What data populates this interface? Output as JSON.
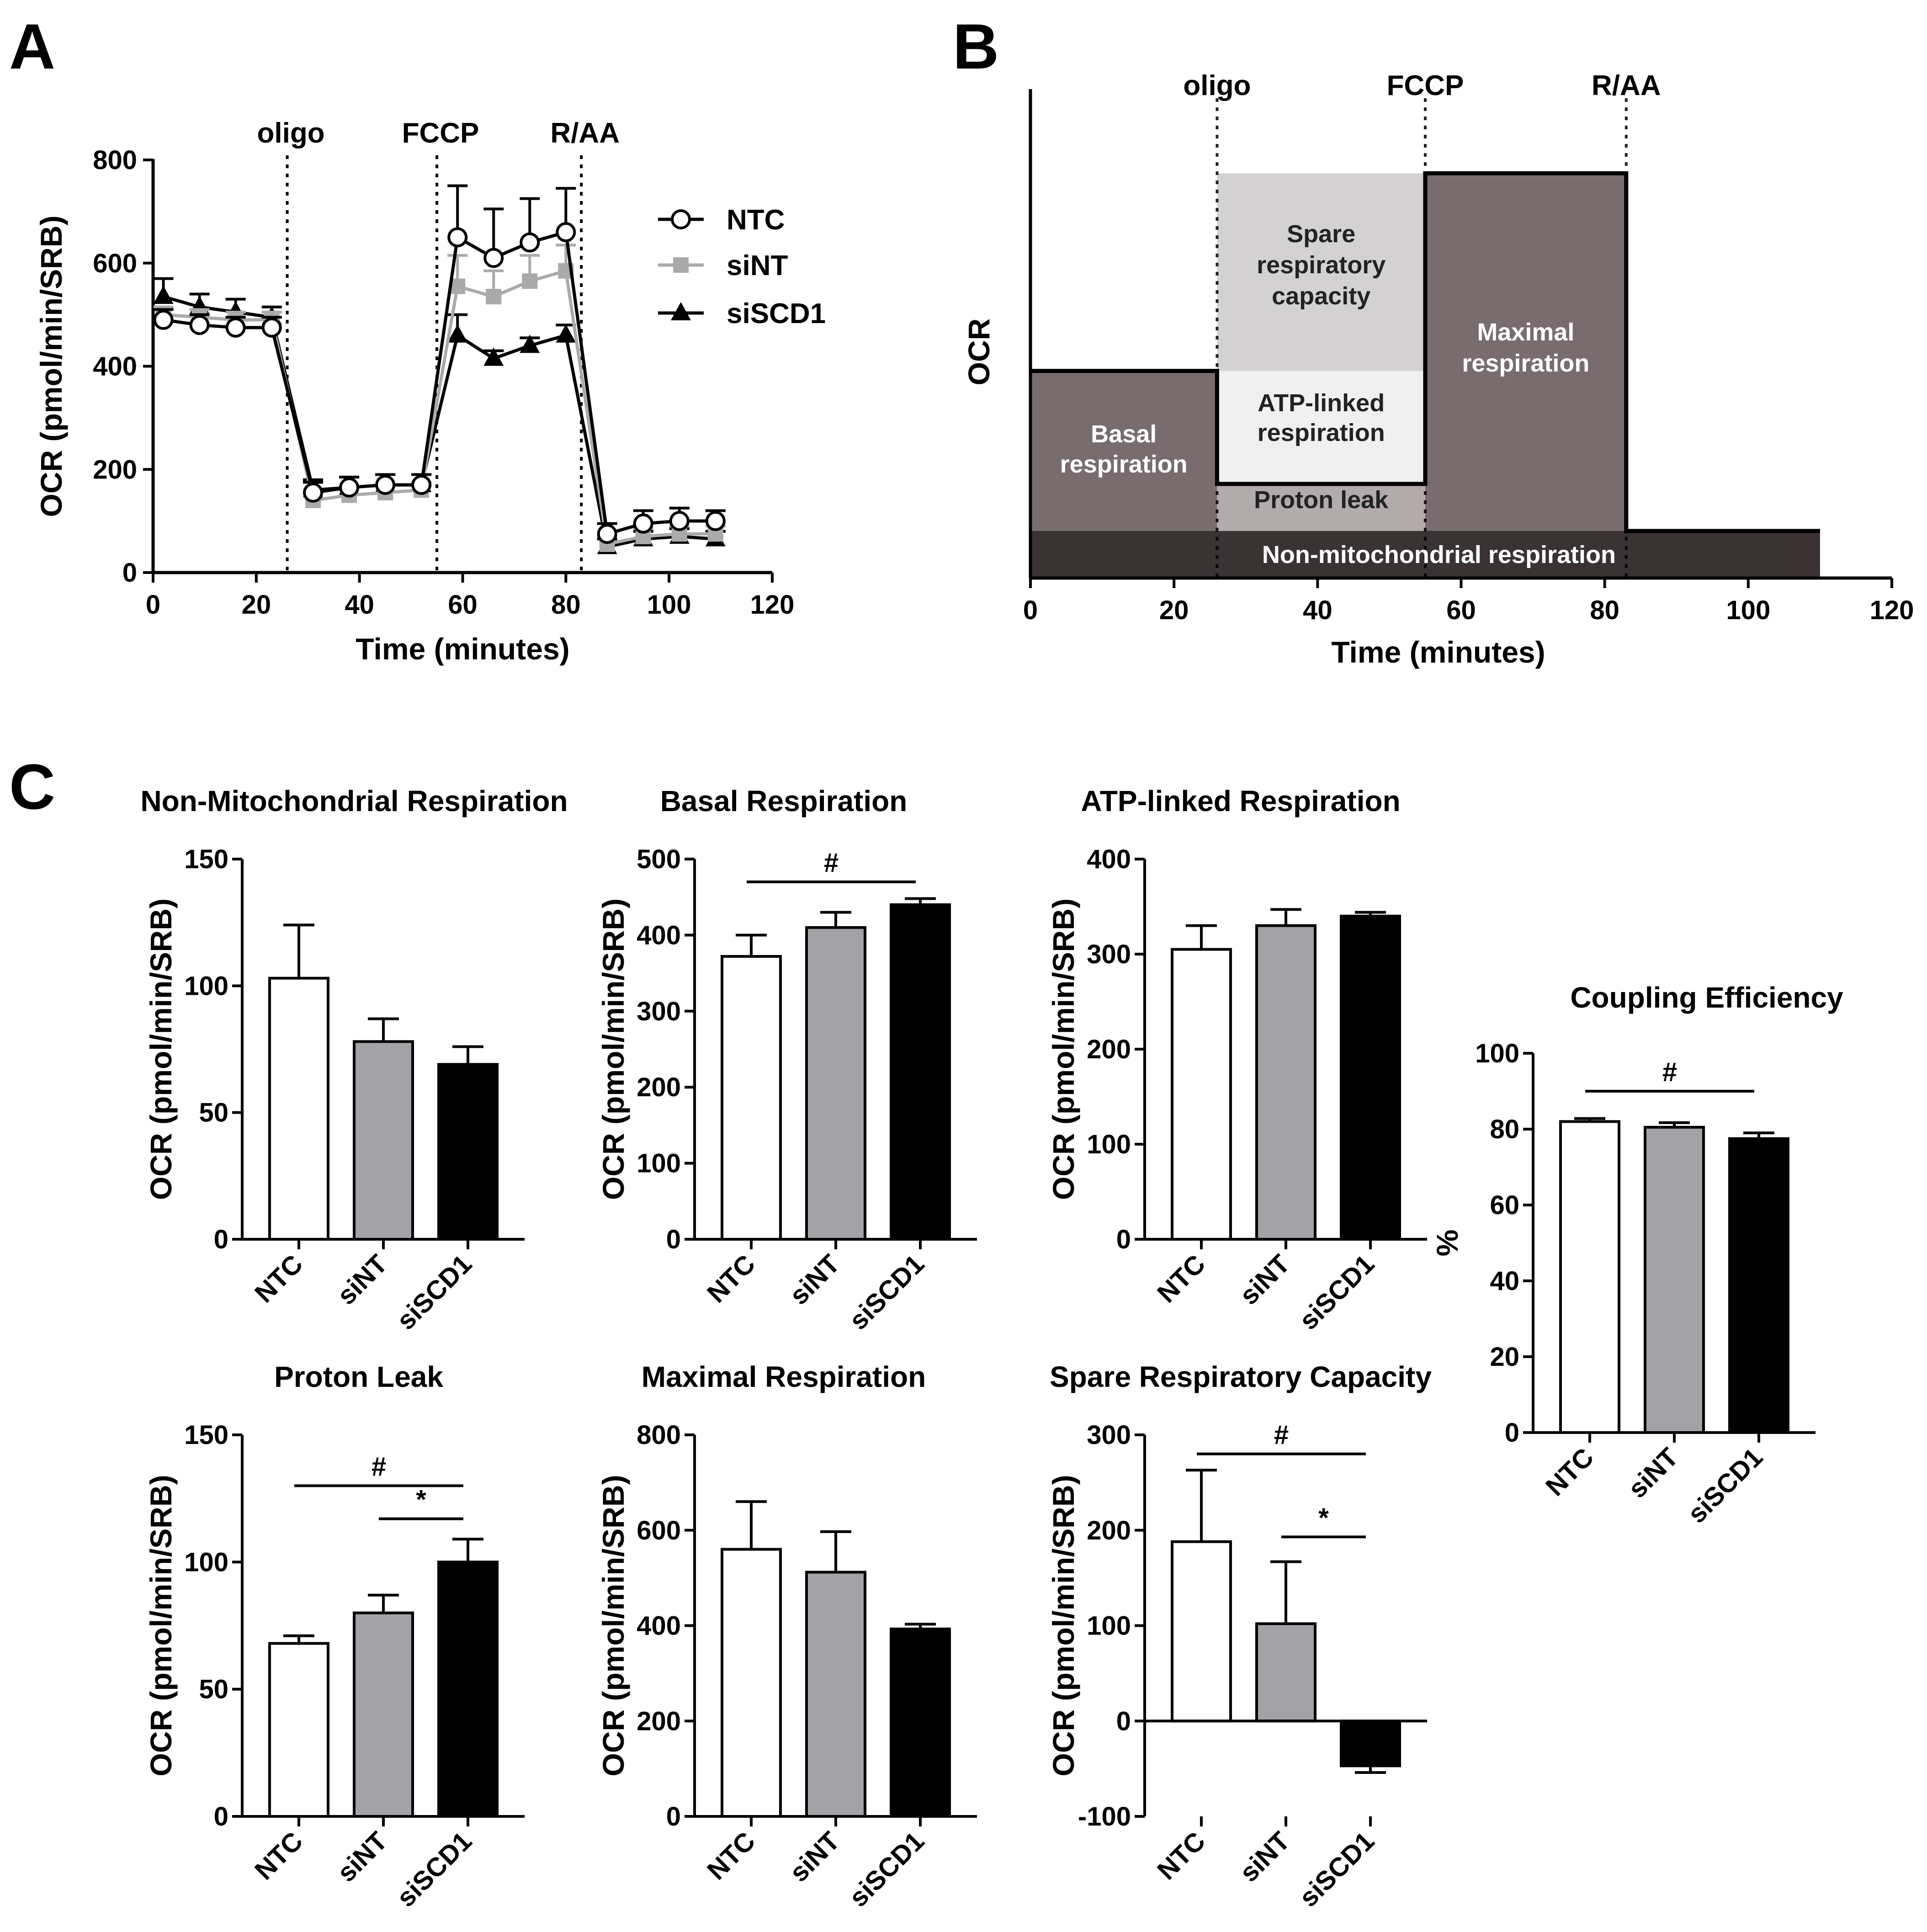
{
  "panels": {
    "a": "A",
    "b": "B",
    "c": "C"
  },
  "chart_data": [
    {
      "id": "A",
      "type": "line",
      "xlabel": "Time (minutes)",
      "ylabel": "OCR (pmol/min/SRB)",
      "xlim": [
        0,
        120
      ],
      "ylim": [
        0,
        800
      ],
      "xticks": [
        0,
        20,
        40,
        60,
        80,
        100,
        120
      ],
      "yticks": [
        0,
        200,
        400,
        600,
        800
      ],
      "injections": [
        {
          "label": "oligo",
          "x": 26
        },
        {
          "label": "FCCP",
          "x": 55
        },
        {
          "label": "R/AA",
          "x": 83
        }
      ],
      "x": [
        2,
        9,
        16,
        23,
        31,
        38,
        45,
        52,
        59,
        66,
        73,
        80,
        88,
        95,
        102,
        109
      ],
      "series": [
        {
          "name": "NTC",
          "marker": "circle-open",
          "color": "#000000",
          "values": [
            490,
            480,
            475,
            475,
            155,
            165,
            170,
            170,
            650,
            610,
            640,
            660,
            75,
            95,
            100,
            100
          ],
          "errors": [
            20,
            20,
            20,
            20,
            20,
            20,
            20,
            20,
            100,
            95,
            85,
            85,
            20,
            25,
            25,
            20
          ]
        },
        {
          "name": "siNT",
          "marker": "square",
          "color": "#aaaaaa",
          "values": [
            500,
            495,
            490,
            490,
            140,
            150,
            155,
            160,
            555,
            535,
            565,
            585,
            55,
            70,
            75,
            75
          ],
          "errors": [
            15,
            15,
            15,
            15,
            15,
            15,
            15,
            15,
            60,
            50,
            50,
            50,
            15,
            15,
            15,
            15
          ]
        },
        {
          "name": "siSCD1",
          "marker": "triangle",
          "color": "#000000",
          "values": [
            535,
            515,
            505,
            495,
            160,
            165,
            170,
            170,
            460,
            415,
            440,
            460,
            50,
            65,
            70,
            65
          ],
          "errors": [
            35,
            25,
            25,
            20,
            20,
            20,
            20,
            20,
            40,
            15,
            15,
            20,
            15,
            15,
            15,
            15
          ]
        }
      ]
    },
    {
      "id": "B",
      "type": "area",
      "xlabel": "Time (minutes)",
      "ylabel": "OCR",
      "xlim": [
        0,
        120
      ],
      "xticks": [
        0,
        20,
        40,
        60,
        80,
        100,
        120
      ],
      "injections": [
        {
          "label": "oligo",
          "x": 26
        },
        {
          "label": "FCCP",
          "x": 55
        },
        {
          "label": "R/AA",
          "x": 83
        }
      ],
      "levels": {
        "non_mito": 1,
        "proton": 2,
        "basal": 4.4,
        "maximal": 8.6
      },
      "regions": {
        "basal": [
          "Basal",
          "respiration"
        ],
        "spare": [
          "Spare",
          "respiratory",
          "capacity"
        ],
        "atp": [
          "ATP-linked",
          "respiration"
        ],
        "proton": "Proton leak",
        "maximal": [
          "Maximal",
          "respiration"
        ],
        "nonmito": "Non-mitochondrial respiration"
      }
    },
    {
      "id": "C1",
      "type": "bar",
      "title": "Non-Mitochondrial Respiration",
      "ylabel": "OCR (pmol/min/SRB)",
      "categories": [
        "NTC",
        "siNT",
        "siSCD1"
      ],
      "values": [
        103,
        78,
        69
      ],
      "errors": [
        21,
        9,
        7
      ],
      "ylim": [
        0,
        150
      ],
      "yticks": [
        0,
        50,
        100,
        150
      ],
      "significance": []
    },
    {
      "id": "C2",
      "type": "bar",
      "title": "Basal Respiration",
      "ylabel": "OCR (pmol/min/SRB)",
      "categories": [
        "NTC",
        "siNT",
        "siSCD1"
      ],
      "values": [
        372,
        410,
        440
      ],
      "errors": [
        28,
        20,
        8
      ],
      "ylim": [
        0,
        500
      ],
      "yticks": [
        0,
        100,
        200,
        300,
        400,
        500
      ],
      "significance": [
        {
          "from": 0,
          "to": 2,
          "label": "#",
          "y": 470
        }
      ]
    },
    {
      "id": "C3",
      "type": "bar",
      "title": "ATP-linked Respiration",
      "ylabel": "OCR (pmol/min/SRB)",
      "categories": [
        "NTC",
        "siNT",
        "siSCD1"
      ],
      "values": [
        305,
        330,
        340
      ],
      "errors": [
        25,
        17,
        4
      ],
      "ylim": [
        0,
        400
      ],
      "yticks": [
        0,
        100,
        200,
        300,
        400
      ],
      "significance": []
    },
    {
      "id": "C4",
      "type": "bar",
      "title": "Proton Leak",
      "ylabel": "OCR (pmol/min/SRB)",
      "categories": [
        "NTC",
        "siNT",
        "siSCD1"
      ],
      "values": [
        68,
        80,
        100
      ],
      "errors": [
        3,
        7,
        9
      ],
      "ylim": [
        0,
        150
      ],
      "yticks": [
        0,
        50,
        100,
        150
      ],
      "significance": [
        {
          "from": 0,
          "to": 2,
          "label": "#",
          "y": 130
        },
        {
          "from": 1,
          "to": 2,
          "label": "*",
          "y": 117
        }
      ]
    },
    {
      "id": "C5",
      "type": "bar",
      "title": "Maximal Respiration",
      "ylabel": "OCR (pmol/min/SRB)",
      "categories": [
        "NTC",
        "siNT",
        "siSCD1"
      ],
      "values": [
        560,
        512,
        393
      ],
      "errors": [
        100,
        85,
        10
      ],
      "ylim": [
        0,
        800
      ],
      "yticks": [
        0,
        200,
        400,
        600,
        800
      ],
      "significance": []
    },
    {
      "id": "C6",
      "type": "bar",
      "title": "Spare Respiratory Capacity",
      "ylabel": "OCR (pmol/min/SRB)",
      "categories": [
        "NTC",
        "siNT",
        "siSCD1"
      ],
      "values": [
        188,
        102,
        -47
      ],
      "errors": [
        75,
        65,
        7
      ],
      "ylim": [
        -100,
        300
      ],
      "yticks": [
        -100,
        0,
        100,
        200,
        300
      ],
      "significance": [
        {
          "from": 0,
          "to": 2,
          "label": "#",
          "y": 280
        },
        {
          "from": 1,
          "to": 2,
          "label": "*",
          "y": 193
        }
      ]
    },
    {
      "id": "C7",
      "type": "bar",
      "title": "Coupling Efficiency",
      "ylabel": "%",
      "categories": [
        "NTC",
        "siNT",
        "siSCD1"
      ],
      "values": [
        82,
        80.5,
        77.5
      ],
      "errors": [
        0.8,
        1.2,
        1.5
      ],
      "ylim": [
        0,
        100
      ],
      "yticks": [
        0,
        20,
        40,
        60,
        80,
        100
      ],
      "significance": [
        {
          "from": 0,
          "to": 2,
          "label": "#",
          "y": 90
        }
      ]
    }
  ],
  "bar_colors": [
    "#ffffff",
    "#a3a2a6",
    "#000000"
  ]
}
